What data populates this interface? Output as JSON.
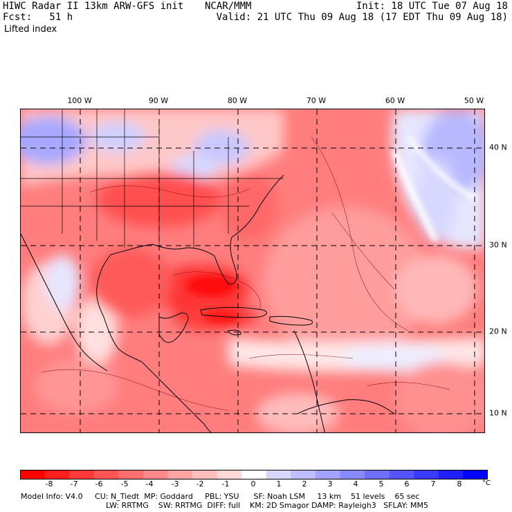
{
  "header": {
    "title": "HIWC Radar II 13km ARW-GFS init",
    "org": "NCAR/MMM",
    "init": "Init: 18 UTC Tue 07 Aug 18",
    "fcst": "Fcst:   51 h",
    "valid": "Valid: 21 UTC Thu 09 Aug 18 (17 EDT Thu 09 Aug 18)",
    "variable": "Lifted index"
  },
  "axes": {
    "lon_labels": [
      "100 W",
      "90 W",
      "80 W",
      "70 W",
      "60 W",
      "50 W"
    ],
    "lat_labels": [
      "40 N",
      "30 N",
      "20 N",
      "10 N"
    ]
  },
  "colorbar": {
    "labels": [
      "-8",
      "-7",
      "-6",
      "-5",
      "-4",
      "-3",
      "-2",
      "-1",
      "0",
      "1",
      "2",
      "3",
      "4",
      "5",
      "6",
      "7",
      "8"
    ],
    "unit": "°C",
    "colors": [
      "#ff0000",
      "#ff1f1f",
      "#ff3a3a",
      "#ff5454",
      "#ff6e6e",
      "#ff8888",
      "#ffa3a3",
      "#ffbdbd",
      "#ffd8d8",
      "#ffffff",
      "#d8d8ff",
      "#bdbdff",
      "#a3a3ff",
      "#8888ff",
      "#6e6eff",
      "#5454ff",
      "#3a3aff",
      "#1f1fff",
      "#0000ff"
    ]
  },
  "model_info": {
    "line1": "Model Info: V4.0     CU: N_Tiedt  MP: Goddard     PBL: YSU      SF: Noah LSM     13 km    51 levels    65 sec",
    "line2": "LW: RRTMG    SW: RRTMG  DIFF: full    KM: 2D Smagor DAMP: Rayleigh3   SFLAY: MM5"
  }
}
